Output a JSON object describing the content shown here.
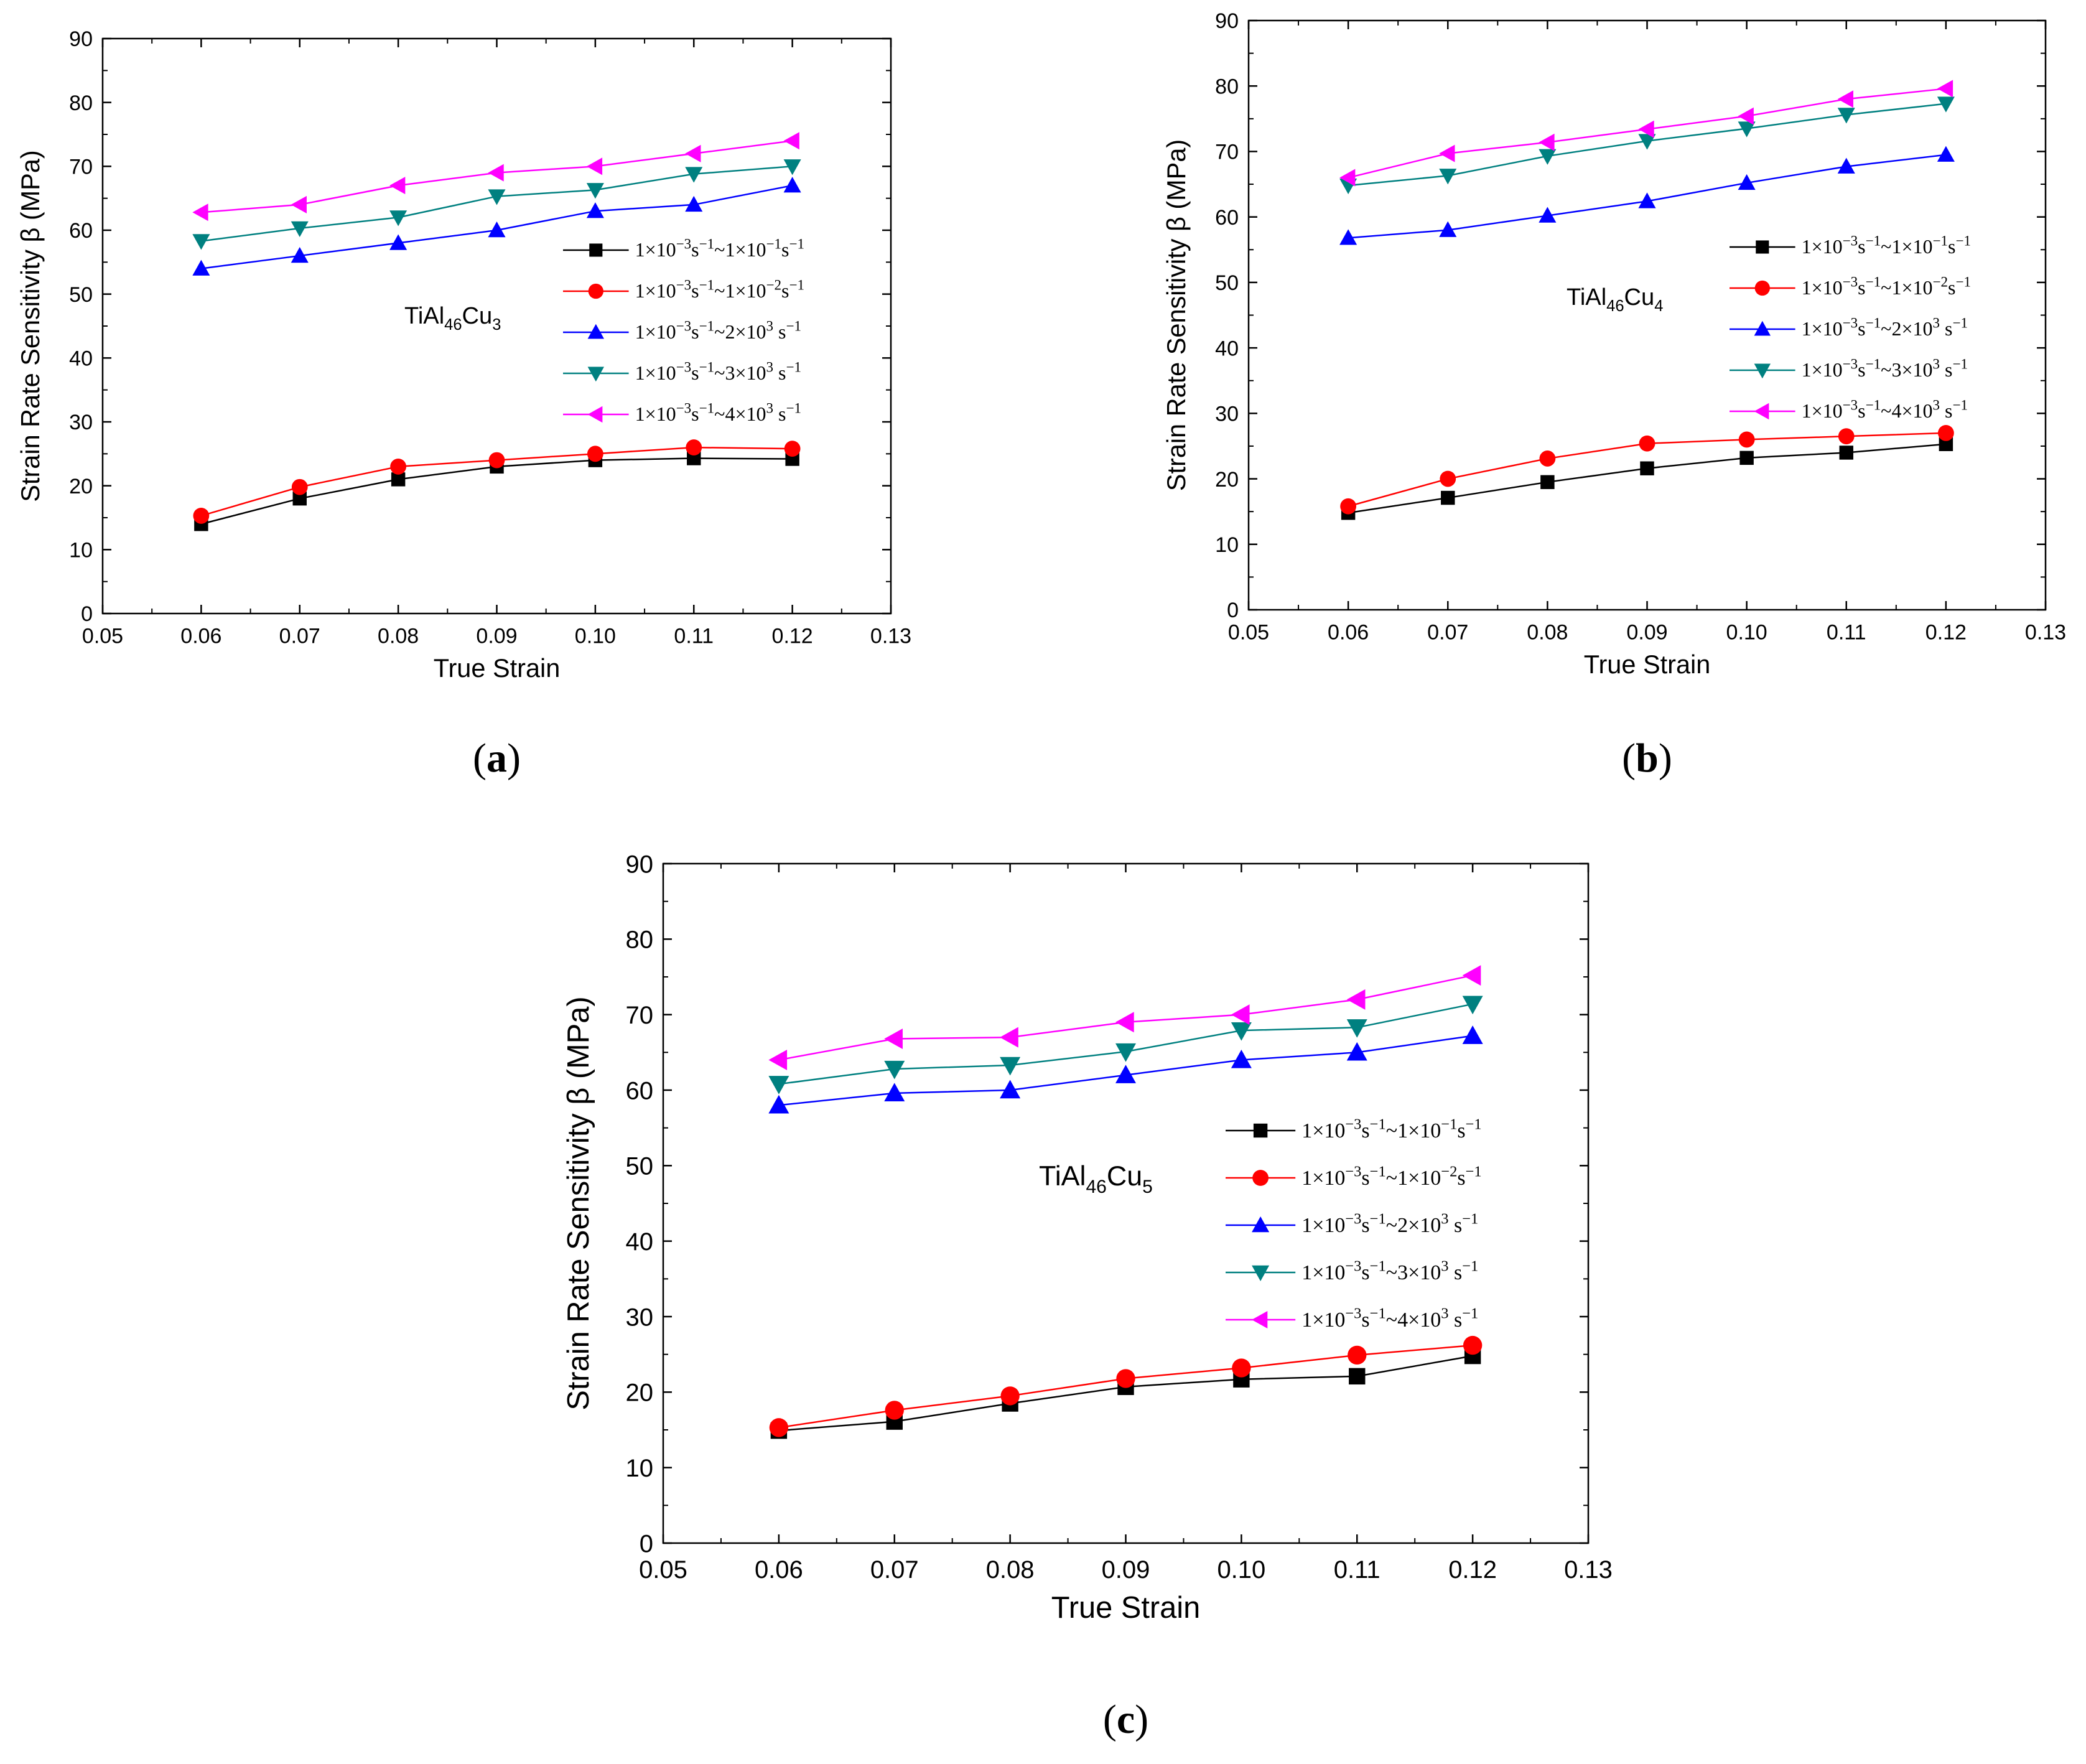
{
  "chart_data": [
    {
      "type": "line",
      "panel_label": "a",
      "annotation": {
        "prefix": "TiAl",
        "sub1": "46",
        "mid": "Cu",
        "sub2": "3"
      },
      "xlabel": "True Strain",
      "ylabel": "Strain Rate Sensitivity β (MPa)",
      "xlim": [
        0.05,
        0.13
      ],
      "ylim": [
        0,
        90
      ],
      "xticks": [
        "0.05",
        "0.06",
        "0.07",
        "0.08",
        "0.09",
        "0.10",
        "0.11",
        "0.12",
        "0.13"
      ],
      "yticks": [
        "0",
        "10",
        "20",
        "30",
        "40",
        "50",
        "60",
        "70",
        "80",
        "90"
      ],
      "legend_position": "right-middle",
      "x": [
        0.06,
        0.07,
        0.08,
        0.09,
        0.1,
        0.11,
        0.12
      ],
      "series": [
        {
          "name": "1×10−3s−1~1×10−1s−1",
          "color": "#000000",
          "marker": "square",
          "values": [
            14,
            18,
            21,
            23,
            24,
            24.3,
            24.2
          ]
        },
        {
          "name": "1×10−3s−1~1×10−2s−1",
          "color": "#ff0000",
          "marker": "circle",
          "values": [
            15.3,
            19.8,
            23,
            24,
            25,
            26,
            25.8
          ]
        },
        {
          "name": "1×10−3s−1~2×103 s−1",
          "color": "#0000ff",
          "marker": "triangle-up",
          "values": [
            54,
            56,
            58,
            60,
            63,
            64,
            67
          ]
        },
        {
          "name": "1×10−3s−1~3×103 s−1",
          "color": "#008080",
          "marker": "triangle-down",
          "values": [
            58.3,
            60.3,
            62,
            65.3,
            66.3,
            68.8,
            70
          ]
        },
        {
          "name": "1×10−3s−1~4×103 s−1",
          "color": "#ff00ff",
          "marker": "triangle-left",
          "values": [
            62.8,
            64,
            67,
            69,
            70,
            72,
            74
          ]
        }
      ]
    },
    {
      "type": "line",
      "panel_label": "b",
      "annotation": {
        "prefix": "TiAl",
        "sub1": "46",
        "mid": "Cu",
        "sub2": "4"
      },
      "xlabel": "True Strain",
      "ylabel": "Strain Rate Sensitivity β (MPa)",
      "xlim": [
        0.05,
        0.13
      ],
      "ylim": [
        0,
        90
      ],
      "xticks": [
        "0.05",
        "0.06",
        "0.07",
        "0.08",
        "0.09",
        "0.10",
        "0.11",
        "0.12",
        "0.13"
      ],
      "yticks": [
        "0",
        "10",
        "20",
        "30",
        "40",
        "50",
        "60",
        "70",
        "80",
        "90"
      ],
      "legend_position": "right-middle",
      "x": [
        0.06,
        0.07,
        0.08,
        0.09,
        0.1,
        0.11,
        0.12
      ],
      "series": [
        {
          "name": "1×10−3s−1~1×10−1s−1",
          "color": "#000000",
          "marker": "square",
          "values": [
            14.8,
            17.1,
            19.5,
            21.6,
            23.2,
            24,
            25.3
          ]
        },
        {
          "name": "1×10−3s−1~1×10−2s−1",
          "color": "#ff0000",
          "marker": "circle",
          "values": [
            15.8,
            20,
            23.1,
            25.4,
            26,
            26.5,
            27
          ]
        },
        {
          "name": "1×10−3s−1~2×103 s−1",
          "color": "#0000ff",
          "marker": "triangle-up",
          "values": [
            56.8,
            58,
            60.2,
            62.4,
            65.2,
            67.7,
            69.5
          ]
        },
        {
          "name": "1×10−3s−1~3×103 s−1",
          "color": "#008080",
          "marker": "triangle-down",
          "values": [
            64.8,
            66.3,
            69.3,
            71.6,
            73.5,
            75.6,
            77.3
          ]
        },
        {
          "name": "1×10−3s−1~4×103 s−1",
          "color": "#ff00ff",
          "marker": "triangle-left",
          "values": [
            66,
            69.7,
            71.4,
            73.4,
            75.4,
            78,
            79.6
          ]
        }
      ]
    },
    {
      "type": "line",
      "panel_label": "c",
      "annotation": {
        "prefix": "TiAl",
        "sub1": "46",
        "mid": "Cu",
        "sub2": "5"
      },
      "xlabel": "True Strain",
      "ylabel": "Strain Rate Sensitivity β (MPa)",
      "xlim": [
        0.05,
        0.13
      ],
      "ylim": [
        0,
        90
      ],
      "xticks": [
        "0.05",
        "0.06",
        "0.07",
        "0.08",
        "0.09",
        "0.10",
        "0.11",
        "0.12",
        "0.13"
      ],
      "yticks": [
        "0",
        "10",
        "20",
        "30",
        "40",
        "50",
        "60",
        "70",
        "80",
        "90"
      ],
      "legend_position": "right-middle",
      "x": [
        0.06,
        0.07,
        0.08,
        0.09,
        0.1,
        0.11,
        0.12
      ],
      "series": [
        {
          "name": "1×10−3s−1~1×10−1s−1",
          "color": "#000000",
          "marker": "square",
          "values": [
            14.9,
            16.1,
            18.5,
            20.7,
            21.7,
            22.1,
            24.8
          ]
        },
        {
          "name": "1×10−3s−1~1×10−2s−1",
          "color": "#ff0000",
          "marker": "circle",
          "values": [
            15.3,
            17.6,
            19.5,
            21.8,
            23.2,
            24.9,
            26.2
          ]
        },
        {
          "name": "1×10−3s−1~2×103 s−1",
          "color": "#0000ff",
          "marker": "triangle-up",
          "values": [
            58,
            59.6,
            60,
            62,
            64,
            65,
            67.2
          ]
        },
        {
          "name": "1×10−3s−1~3×103 s−1",
          "color": "#008080",
          "marker": "triangle-down",
          "values": [
            60.8,
            62.8,
            63.3,
            65.1,
            67.9,
            68.3,
            71.4
          ]
        },
        {
          "name": "1×10−3s−1~4×103 s−1",
          "color": "#ff00ff",
          "marker": "triangle-left",
          "values": [
            64,
            66.8,
            67,
            69,
            70,
            72,
            75.2
          ]
        }
      ]
    }
  ],
  "legend_text": [
    {
      "a": "1×10",
      "b": "−3",
      "c": "s",
      "d": "−1",
      "e": "~1×10",
      "f": "−1",
      "g": "s",
      "h": "−1"
    },
    {
      "a": "1×10",
      "b": "−3",
      "c": "s",
      "d": "−1",
      "e": "~1×10",
      "f": "−2",
      "g": "s",
      "h": "−1"
    },
    {
      "a": "1×10",
      "b": "−3",
      "c": "s",
      "d": "−1",
      "e": "~2×10",
      "f": "3",
      "g": " s",
      "h": "−1"
    },
    {
      "a": "1×10",
      "b": "−3",
      "c": "s",
      "d": "−1",
      "e": "~3×10",
      "f": "3",
      "g": " s",
      "h": "−1"
    },
    {
      "a": "1×10",
      "b": "−3",
      "c": "s",
      "d": "−1",
      "e": "~4×10",
      "f": "3",
      "g": " s",
      "h": "−1"
    }
  ]
}
